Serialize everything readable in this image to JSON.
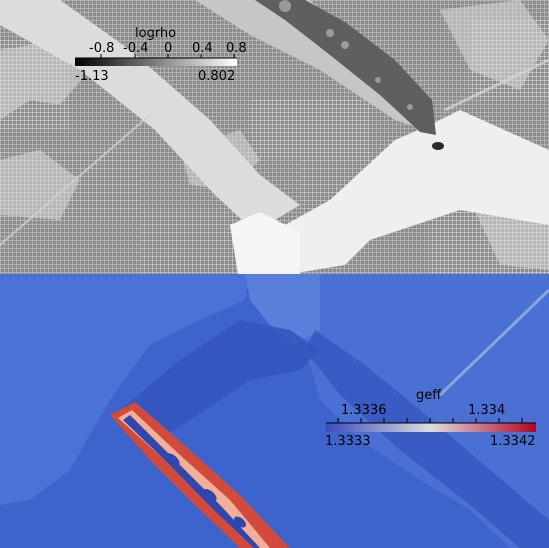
{
  "top_panel": {
    "colorbar": {
      "title": "logrho",
      "tick_labels": [
        "-0.8",
        "-0.4",
        "0",
        "0.4",
        "0.8"
      ],
      "range_min_label": "-1.13",
      "range_max_label": "0.802",
      "colormap": [
        "#000000",
        "#ffffff"
      ]
    }
  },
  "bottom_panel": {
    "colorbar": {
      "title": "geff",
      "tick_labels": [
        "1.3336",
        "1.334"
      ],
      "range_min_label": "1.3333",
      "range_max_label": "1.3342",
      "colormap": [
        "#3b4cc0",
        "#dddddd",
        "#b40426"
      ]
    }
  }
}
